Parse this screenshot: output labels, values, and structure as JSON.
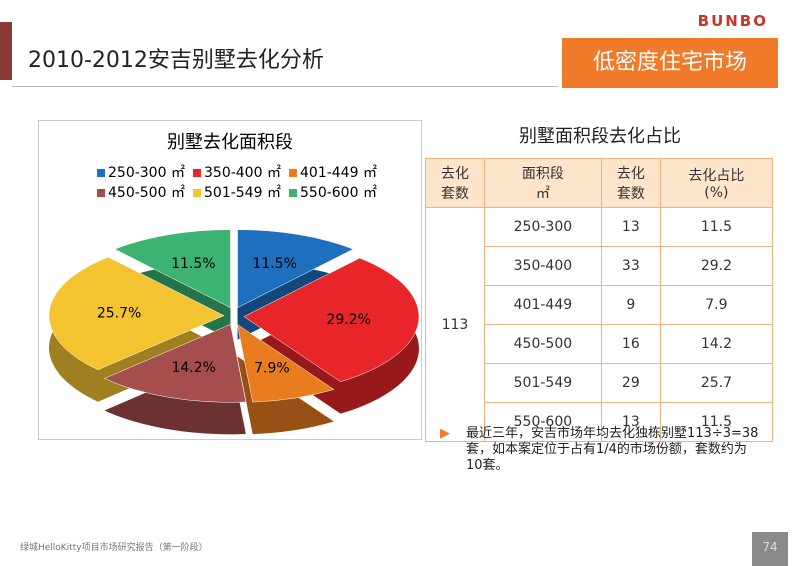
{
  "header": {
    "title": "2010-2012安吉别墅去化分析",
    "logo": "BUNBO",
    "tag": "低密度住宅市场"
  },
  "chart_data": {
    "type": "pie",
    "title": "别墅去化面积段",
    "categories": [
      "250-300 ㎡",
      "350-400 ㎡",
      "401-449 ㎡",
      "450-500 ㎡",
      "501-549 ㎡",
      "550-600 ㎡"
    ],
    "values": [
      11.5,
      29.2,
      7.9,
      14.2,
      25.7,
      11.5
    ],
    "value_labels": [
      "11.5%",
      "29.2%",
      "7.9%",
      "14.2%",
      "25.7%",
      "11.5%"
    ],
    "colors": [
      "#1f6fbf",
      "#e8262a",
      "#e97c1f",
      "#a64d4d",
      "#f4c430",
      "#3cb371"
    ]
  },
  "table": {
    "title": "别墅面积段去化占比",
    "header": [
      "去化\n套数",
      "面积段\n㎡",
      "去化\n套数",
      "去化占比\n(%)"
    ],
    "total": "113",
    "rows": [
      [
        "250-300",
        "13",
        "11.5"
      ],
      [
        "350-400",
        "33",
        "29.2"
      ],
      [
        "401-449",
        "9",
        "7.9"
      ],
      [
        "450-500",
        "16",
        "14.2"
      ],
      [
        "501-549",
        "29",
        "25.7"
      ],
      [
        "550-600",
        "13",
        "11.5"
      ]
    ]
  },
  "note": "最近三年，安吉市场年均去化独栋别墅113÷3=38套，如本案定位于占有1/4的市场份额，套数约为10套。",
  "footer": "绿城HelloKitty项目市场研究报告（第一阶段）",
  "page": "74"
}
